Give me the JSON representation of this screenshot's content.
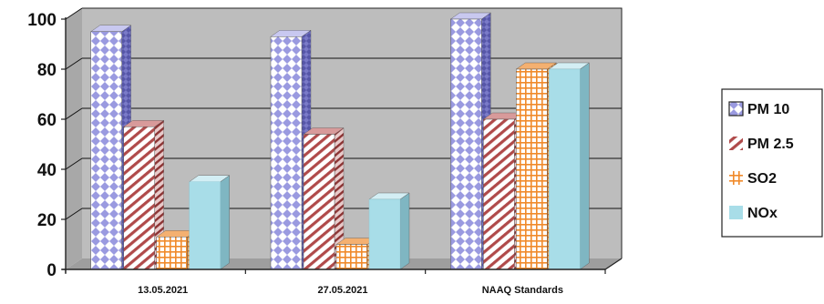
{
  "chart_data": {
    "type": "bar",
    "categories": [
      "13.05.2021",
      "27.05.2021",
      "NAAQ Standards"
    ],
    "series": [
      {
        "name": "PM 10",
        "values": [
          95,
          93,
          100
        ]
      },
      {
        "name": "PM 2.5",
        "values": [
          57,
          54,
          60
        ]
      },
      {
        "name": "SO2",
        "values": [
          13,
          10,
          80
        ]
      },
      {
        "name": "NOx",
        "values": [
          35,
          28,
          80
        ]
      }
    ],
    "yticks": [
      "0",
      "20",
      "40",
      "60",
      "80",
      "100"
    ],
    "ylim": [
      0,
      100
    ],
    "grid": true,
    "legend_position": "right",
    "colors": {
      "pm10": "#9a9ae0",
      "pm25": "#b04a4a",
      "so2": "#f08a2a",
      "nox": "#a8dde8",
      "wall": "#bdbdbd",
      "floor": "#9e9e9e"
    }
  }
}
